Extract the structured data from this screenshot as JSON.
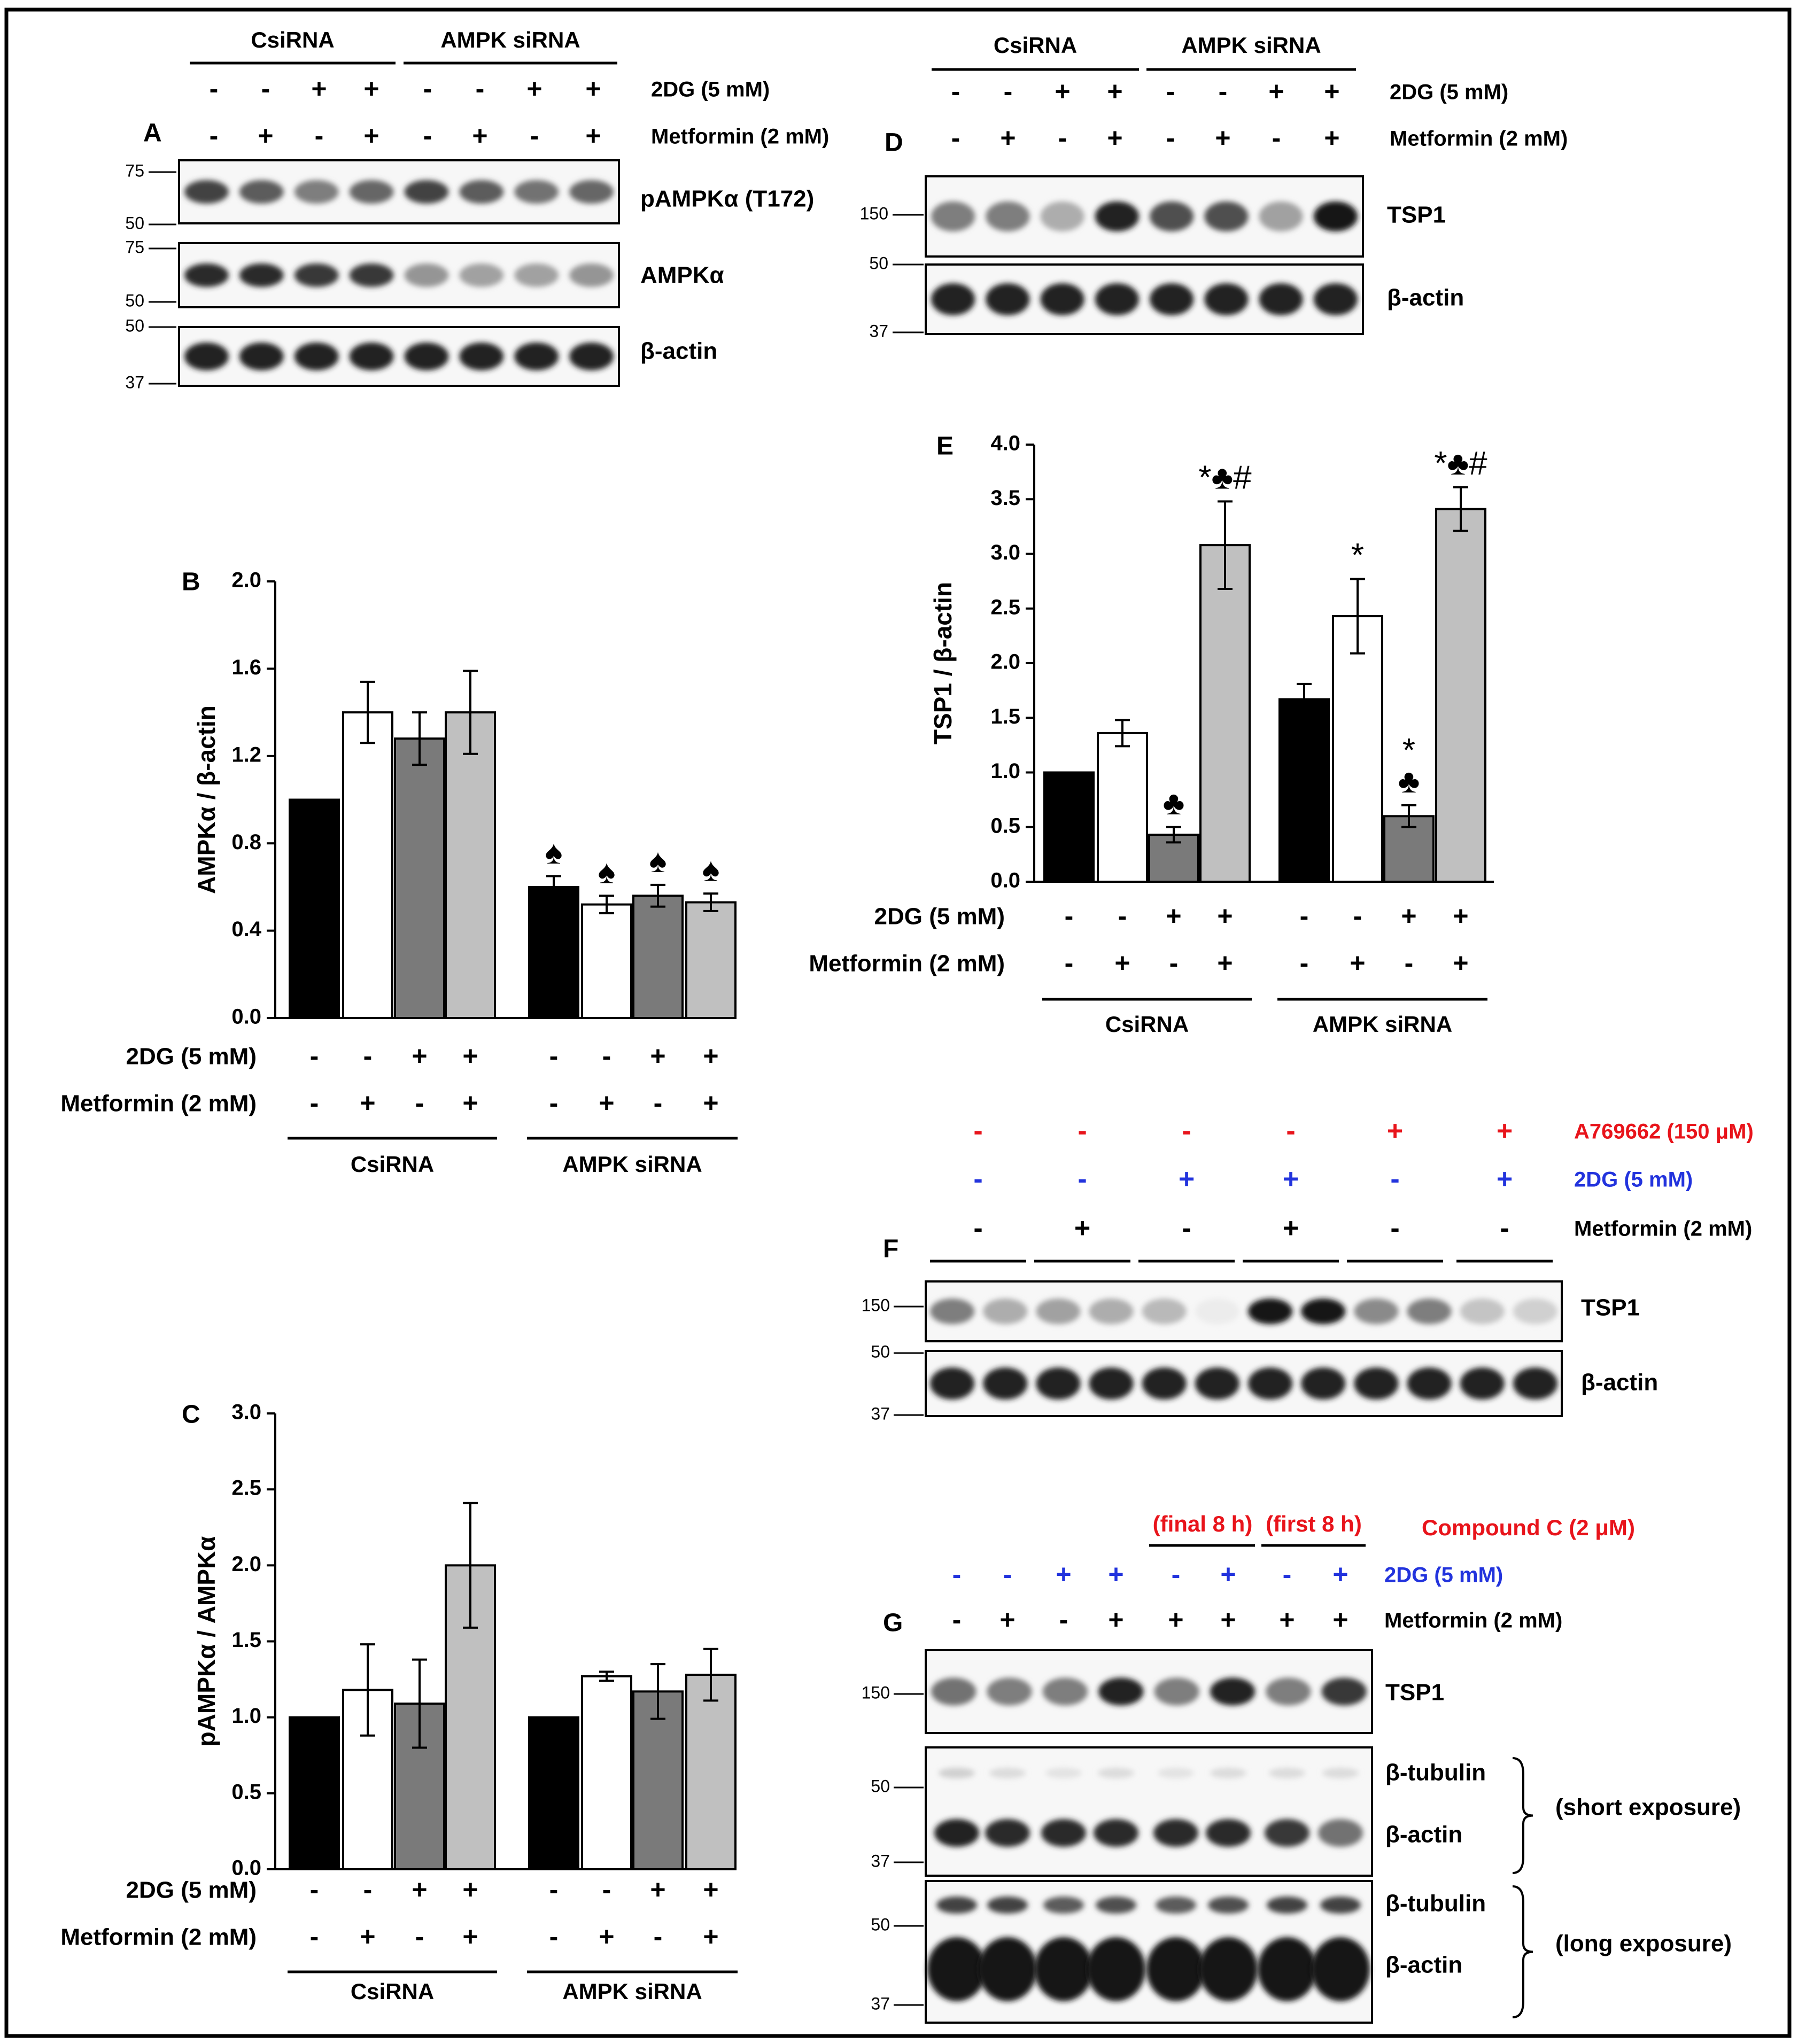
{
  "panelA": {
    "letter": "A",
    "groups": [
      "CsiRNA",
      "AMPK siRNA"
    ],
    "treatments": [
      {
        "label": "2DG (5 mM)",
        "signs": [
          "-",
          "-",
          "+",
          "+",
          "-",
          "-",
          "+",
          "+"
        ]
      },
      {
        "label": "Metformin (2 mM)",
        "signs": [
          "-",
          "+",
          "-",
          "+",
          "-",
          "+",
          "-",
          "+"
        ]
      }
    ],
    "blots": [
      "pAMPKα (T172)",
      "AMPKα",
      "β-actin"
    ],
    "markers": [
      "75",
      "50",
      "75",
      "50",
      "50",
      "37"
    ],
    "band_intensity": {
      "pAMPKα (T172)": [
        0.8,
        0.7,
        0.55,
        0.65,
        0.8,
        0.7,
        0.6,
        0.65
      ],
      "AMPKα": [
        0.9,
        0.9,
        0.85,
        0.85,
        0.45,
        0.4,
        0.4,
        0.45
      ],
      "β-actin": [
        0.95,
        0.95,
        0.95,
        0.95,
        0.95,
        0.95,
        0.95,
        0.95
      ]
    }
  },
  "panelD": {
    "letter": "D",
    "groups": [
      "CsiRNA",
      "AMPK siRNA"
    ],
    "treatments": [
      {
        "label": "2DG (5 mM)",
        "signs": [
          "-",
          "-",
          "+",
          "+",
          "-",
          "-",
          "+",
          "+"
        ]
      },
      {
        "label": "Metformin (2 mM)",
        "signs": [
          "-",
          "+",
          "-",
          "+",
          "-",
          "+",
          "-",
          "+"
        ]
      }
    ],
    "blots": [
      "TSP1",
      "β-actin"
    ],
    "markers": [
      "150",
      "50",
      "37"
    ],
    "band_intensity": {
      "TSP1": [
        0.55,
        0.55,
        0.35,
        0.95,
        0.75,
        0.75,
        0.4,
        1.0
      ],
      "β-actin": [
        0.95,
        0.95,
        0.95,
        0.95,
        0.95,
        0.95,
        0.95,
        0.95
      ]
    }
  },
  "panelF": {
    "letter": "F",
    "treatments": [
      {
        "label": "A769662 (150 μM)",
        "color": "#e8141b",
        "signs": [
          "-",
          "-",
          "-",
          "-",
          "+",
          "+"
        ]
      },
      {
        "label": "2DG (5 mM)",
        "color": "#2233dd",
        "signs": [
          "-",
          "-",
          "+",
          "+",
          "-",
          "+"
        ]
      },
      {
        "label": "Metformin (2 mM)",
        "color": "#000000",
        "signs": [
          "-",
          "+",
          "-",
          "+",
          "-",
          "-"
        ]
      }
    ],
    "blots": [
      "TSP1",
      "β-actin"
    ],
    "markers": [
      "150",
      "50",
      "37"
    ],
    "band_intensity": {
      "TSP1": [
        0.55,
        0.35,
        0.4,
        0.35,
        0.3,
        0.08,
        1.0,
        1.0,
        0.5,
        0.55,
        0.25,
        0.2
      ],
      "β-actin": [
        0.95,
        0.95,
        0.95,
        0.95,
        0.95,
        0.95,
        0.95,
        0.95,
        0.95,
        0.95,
        0.95,
        0.95
      ]
    }
  },
  "panelG": {
    "letter": "G",
    "compound_label": "Compound C (2 μM)",
    "compound_windows": [
      "(final 8 h)",
      "(first 8 h)"
    ],
    "treatments": [
      {
        "label": "2DG (5 mM)",
        "color": "#2233dd",
        "signs": [
          "-",
          "-",
          "+",
          "+",
          "-",
          "+",
          "-",
          "+"
        ]
      },
      {
        "label": "Metformin (2 mM)",
        "color": "#000000",
        "signs": [
          "-",
          "+",
          "-",
          "+",
          "+",
          "+",
          "+",
          "+"
        ]
      }
    ],
    "blots": {
      "tsp1": "TSP1",
      "short_tubulin": "β-tubulin",
      "short_actin": "β-actin",
      "long_tubulin": "β-tubulin",
      "long_actin": "β-actin"
    },
    "exposures": [
      "(short exposure)",
      "(long exposure)"
    ],
    "markers": [
      "150",
      "50",
      "37",
      "50",
      "37"
    ],
    "band_intensity": {
      "TSP1": [
        0.6,
        0.55,
        0.55,
        0.95,
        0.55,
        0.95,
        0.55,
        0.85
      ],
      "β-tubulin short": [
        0.2,
        0.15,
        0.12,
        0.15,
        0.12,
        0.15,
        0.15,
        0.15
      ],
      "β-actin short": [
        0.95,
        0.9,
        0.9,
        0.9,
        0.9,
        0.9,
        0.85,
        0.6
      ],
      "β-tubulin long": [
        0.8,
        0.8,
        0.7,
        0.75,
        0.7,
        0.75,
        0.8,
        0.8
      ],
      "β-actin long": [
        1.0,
        1.0,
        1.0,
        1.0,
        1.0,
        1.0,
        1.0,
        1.0
      ]
    }
  },
  "chart_data": [
    {
      "id": "B",
      "type": "bar",
      "title": "",
      "letter": "B",
      "ylabel": "AMPKα / β-actin",
      "xlabel": "",
      "ylim": [
        0,
        2.0
      ],
      "yticks": [
        "0.0",
        "0.4",
        "0.8",
        "1.2",
        "1.6",
        "2.0"
      ],
      "groups": [
        "CsiRNA",
        "AMPK siRNA"
      ],
      "treatments": [
        {
          "label": "2DG (5 mM)",
          "signs": [
            "-",
            "-",
            "+",
            "+",
            "-",
            "-",
            "+",
            "+"
          ]
        },
        {
          "label": "Metformin (2 mM)",
          "signs": [
            "-",
            "+",
            "-",
            "+",
            "-",
            "+",
            "-",
            "+"
          ]
        }
      ],
      "values": [
        1.0,
        1.4,
        1.28,
        1.4,
        0.6,
        0.52,
        0.56,
        0.53
      ],
      "errors": [
        0.0,
        0.14,
        0.12,
        0.19,
        0.05,
        0.04,
        0.05,
        0.04
      ],
      "fills": [
        "#000000",
        "#ffffff",
        "#7a7a7a",
        "#c0c0c0",
        "#000000",
        "#ffffff",
        "#7a7a7a",
        "#c0c0c0"
      ],
      "annotations": [
        "",
        "",
        "",
        "",
        "♠",
        "♠",
        "♠",
        "♠"
      ]
    },
    {
      "id": "C",
      "type": "bar",
      "title": "",
      "letter": "C",
      "ylabel": "pAMPKα / AMPKα",
      "xlabel": "",
      "ylim": [
        0,
        3.0
      ],
      "yticks": [
        "0.0",
        "0.5",
        "1.0",
        "1.5",
        "2.0",
        "2.5",
        "3.0"
      ],
      "groups": [
        "CsiRNA",
        "AMPK siRNA"
      ],
      "treatments": [
        {
          "label": "2DG (5 mM)",
          "signs": [
            "-",
            "-",
            "+",
            "+",
            "-",
            "-",
            "+",
            "+"
          ]
        },
        {
          "label": "Metformin (2 mM)",
          "signs": [
            "-",
            "+",
            "-",
            "+",
            "-",
            "+",
            "-",
            "+"
          ]
        }
      ],
      "values": [
        1.0,
        1.18,
        1.09,
        2.0,
        1.0,
        1.27,
        1.17,
        1.28
      ],
      "errors": [
        0.0,
        0.3,
        0.29,
        0.41,
        0.0,
        0.03,
        0.18,
        0.17
      ],
      "fills": [
        "#000000",
        "#ffffff",
        "#7a7a7a",
        "#c0c0c0",
        "#000000",
        "#ffffff",
        "#7a7a7a",
        "#c0c0c0"
      ],
      "annotations": [
        "",
        "",
        "",
        "",
        "",
        "",
        "",
        ""
      ]
    },
    {
      "id": "E",
      "type": "bar",
      "title": "",
      "letter": "E",
      "ylabel": "TSP1 / β-actin",
      "xlabel": "",
      "ylim": [
        0,
        4.0
      ],
      "yticks": [
        "0.0",
        "0.5",
        "1.0",
        "1.5",
        "2.0",
        "2.5",
        "3.0",
        "3.5",
        "4.0"
      ],
      "groups": [
        "CsiRNA",
        "AMPK siRNA"
      ],
      "treatments": [
        {
          "label": "2DG (5 mM)",
          "signs": [
            "-",
            "-",
            "+",
            "+",
            "-",
            "-",
            "+",
            "+"
          ]
        },
        {
          "label": "Metformin (2 mM)",
          "signs": [
            "-",
            "+",
            "-",
            "+",
            "-",
            "+",
            "-",
            "+"
          ]
        }
      ],
      "values": [
        1.0,
        1.36,
        0.43,
        3.08,
        1.67,
        2.43,
        0.6,
        3.41
      ],
      "errors": [
        0.0,
        0.12,
        0.07,
        0.4,
        0.14,
        0.34,
        0.1,
        0.2
      ],
      "fills": [
        "#000000",
        "#ffffff",
        "#7a7a7a",
        "#c0c0c0",
        "#000000",
        "#ffffff",
        "#7a7a7a",
        "#c0c0c0"
      ],
      "annotations": [
        "",
        "",
        "♣",
        "*♣#",
        "",
        "*",
        "*\n♣",
        "*♣#"
      ]
    }
  ]
}
